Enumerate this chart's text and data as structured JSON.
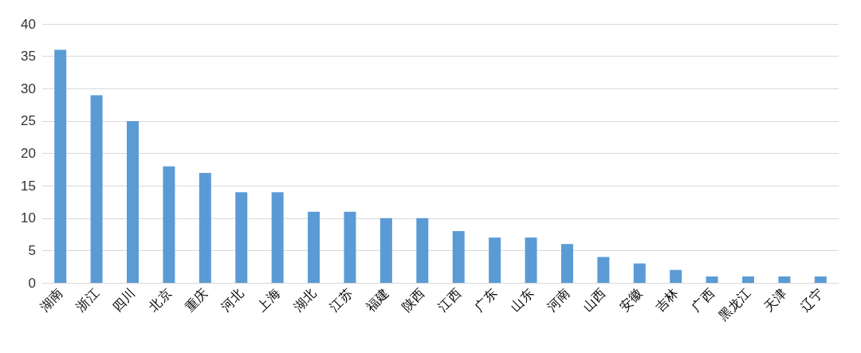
{
  "chart_data": {
    "type": "bar",
    "categories": [
      "湖南",
      "浙江",
      "四川",
      "北京",
      "重庆",
      "河北",
      "上海",
      "湖北",
      "江苏",
      "福建",
      "陕西",
      "江西",
      "广东",
      "山东",
      "河南",
      "山西",
      "安徽",
      "吉林",
      "广西",
      "黑龙江",
      "天津",
      "辽宁"
    ],
    "values": [
      36,
      29,
      25,
      18,
      17,
      14,
      14,
      11,
      11,
      10,
      10,
      8,
      7,
      7,
      6,
      4,
      3,
      2,
      1,
      1,
      1,
      1
    ],
    "color": "#5b9bd5",
    "ylim": [
      0,
      40
    ],
    "yticks": [
      0,
      5,
      10,
      15,
      20,
      25,
      30,
      35,
      40
    ],
    "grid": "y"
  }
}
